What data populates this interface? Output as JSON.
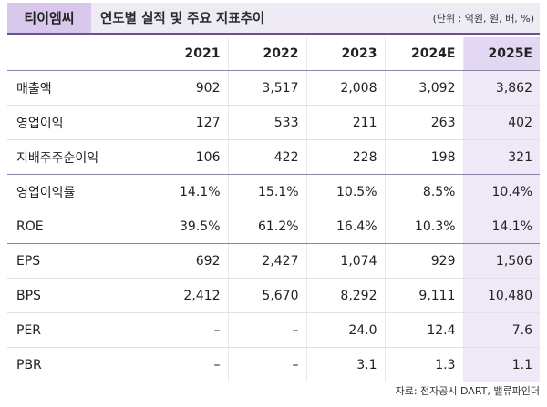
{
  "header": {
    "company": "티이엠씨",
    "title": "연도별 실적 및 주요 지표추이",
    "unit": "(단위 : 억원, 원, 배, %)"
  },
  "table": {
    "columns": [
      "2021",
      "2022",
      "2023",
      "2024E",
      "2025E"
    ],
    "rows": [
      {
        "label": "매출액",
        "values": [
          "902",
          "3,517",
          "2,008",
          "3,092",
          "3,862"
        ]
      },
      {
        "label": "영업이익",
        "values": [
          "127",
          "533",
          "211",
          "263",
          "402"
        ]
      },
      {
        "label": "지배주주순이익",
        "values": [
          "106",
          "422",
          "228",
          "198",
          "321"
        ]
      },
      {
        "label": "영업이익률",
        "values": [
          "14.1%",
          "15.1%",
          "10.5%",
          "8.5%",
          "10.4%"
        ]
      },
      {
        "label": "ROE",
        "values": [
          "39.5%",
          "61.2%",
          "16.4%",
          "10.3%",
          "14.1%"
        ]
      },
      {
        "label": "EPS",
        "values": [
          "692",
          "2,427",
          "1,074",
          "929",
          "1,506"
        ]
      },
      {
        "label": "BPS",
        "values": [
          "2,412",
          "5,670",
          "8,292",
          "9,111",
          "10,480"
        ]
      },
      {
        "label": "PER",
        "values": [
          "–",
          "–",
          "24.0",
          "12.4",
          "7.6"
        ]
      },
      {
        "label": "PBR",
        "values": [
          "–",
          "–",
          "3.1",
          "1.3",
          "1.1"
        ]
      }
    ]
  },
  "source": "자료: 전자공시 DART, 밸류파인더",
  "colors": {
    "accent": "#6b4f97",
    "company_bg": "#d8c9ec",
    "title_bg": "#efebf5",
    "highlight_column": "#efe9f7"
  }
}
